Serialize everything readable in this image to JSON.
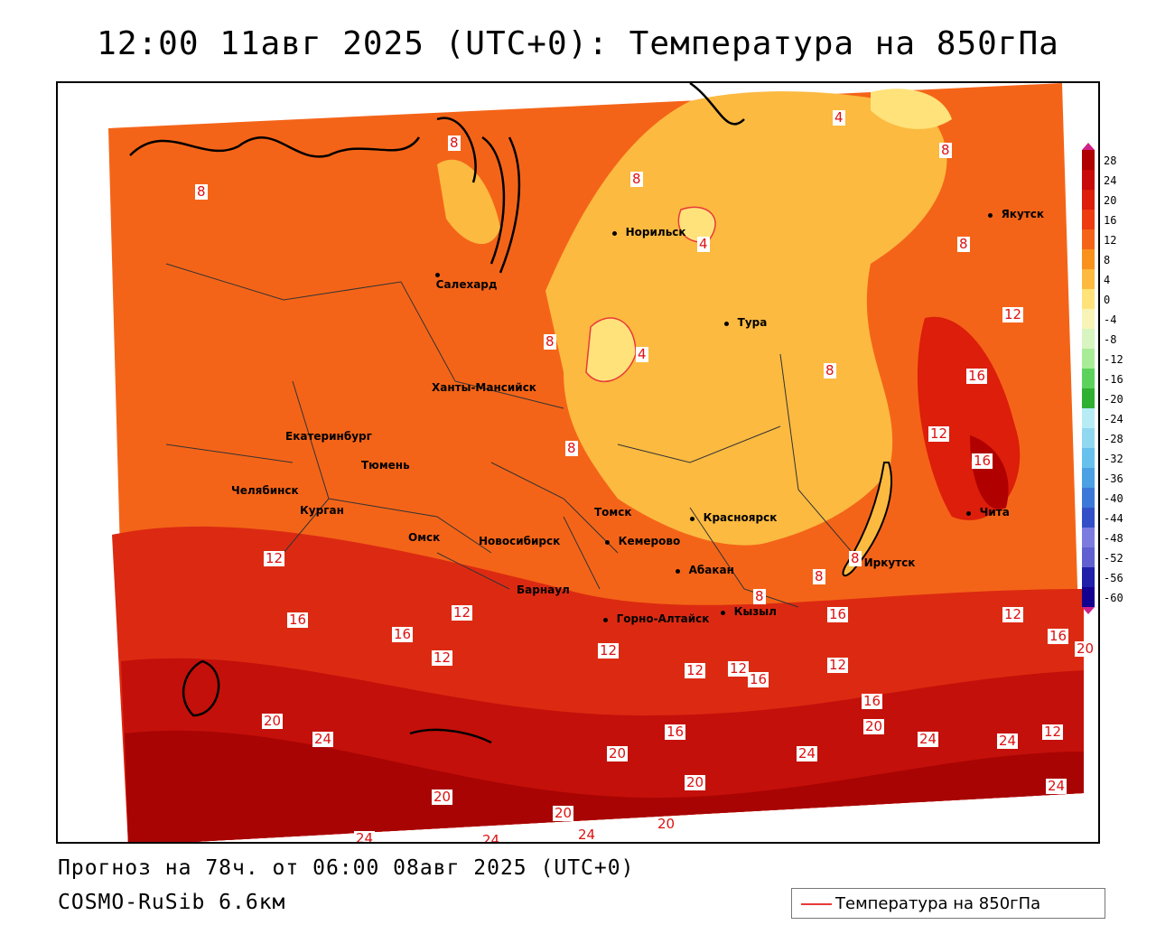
{
  "title": "12:00 11авг 2025 (UTC+0): Температура на 850гПа",
  "footer": {
    "forecast": "Прогноз на 78ч. от 06:00 08авг 2025 (UTC+0)",
    "model": "COSMO-RuSib 6.6км"
  },
  "legend": {
    "label": "Температура на 850гПа",
    "line_color": "#e83a3a"
  },
  "colorbar": {
    "labels": [
      "28",
      "24",
      "20",
      "16",
      "12",
      "8",
      "4",
      "0",
      "-4",
      "-8",
      "-12",
      "-16",
      "-20",
      "-24",
      "-28",
      "-32",
      "-36",
      "-40",
      "-44",
      "-48",
      "-52",
      "-56",
      "-60"
    ],
    "colors": [
      "#b00000",
      "#c80a0a",
      "#dc1e0a",
      "#ec3c10",
      "#f46418",
      "#f8921c",
      "#fcba40",
      "#ffe27a",
      "#f8f4b8",
      "#d8f4c0",
      "#a8ec98",
      "#5cd25c",
      "#30b030",
      "#b8ecf4",
      "#90d8f0",
      "#68c0ec",
      "#4ca0e4",
      "#3c78d8",
      "#3450c8",
      "#7c7ce0",
      "#6060d0",
      "#2020a8",
      "#140090"
    ]
  },
  "cities": [
    {
      "name": "Норильск"
    },
    {
      "name": "Якутск"
    },
    {
      "name": "Салехард"
    },
    {
      "name": "Тура"
    },
    {
      "name": "Ханты-Мансийск"
    },
    {
      "name": "Екатеринбург"
    },
    {
      "name": "Тюмень"
    },
    {
      "name": "Челябинск"
    },
    {
      "name": "Курган"
    },
    {
      "name": "Омск"
    },
    {
      "name": "Томск"
    },
    {
      "name": "Красноярск"
    },
    {
      "name": "Новосибирск"
    },
    {
      "name": "Кемерово"
    },
    {
      "name": "Барнаул"
    },
    {
      "name": "Абакан"
    },
    {
      "name": "Иркутск"
    },
    {
      "name": "Чита"
    },
    {
      "name": "Кызыл"
    },
    {
      "name": "Горно-Алтайск"
    }
  ],
  "contour_labels": [
    "8",
    "8",
    "8",
    "4",
    "8",
    "8",
    "4",
    "8",
    "12",
    "4",
    "8",
    "16",
    "8",
    "12",
    "16",
    "12",
    "12",
    "16",
    "12",
    "16",
    "12",
    "12",
    "16",
    "20",
    "12",
    "16",
    "12",
    "16",
    "16",
    "16",
    "20",
    "20",
    "24",
    "20",
    "24",
    "20",
    "20",
    "20",
    "20",
    "24",
    "24",
    "24",
    "24",
    "24",
    "24",
    "8",
    "8",
    "8",
    "12",
    "12"
  ]
}
